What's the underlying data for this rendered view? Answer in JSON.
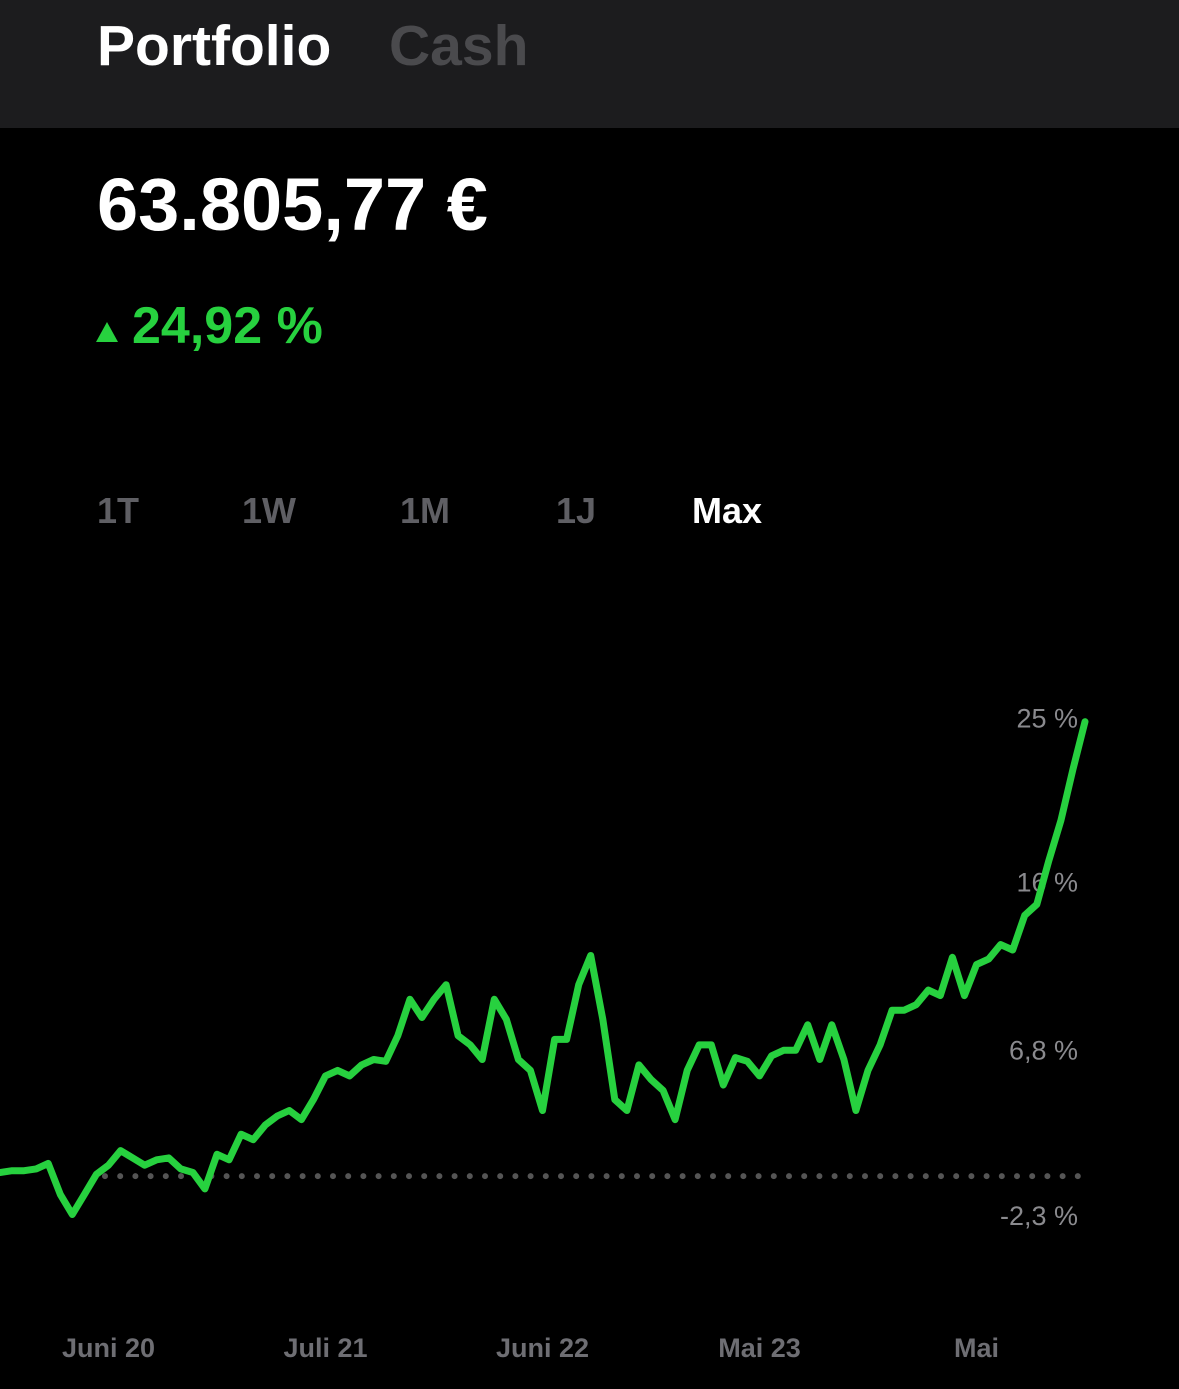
{
  "header": {
    "tabs": [
      "Portfolio",
      "Cash"
    ]
  },
  "portfolio": {
    "value": "63.805,77 €",
    "change": "24,92 %"
  },
  "range_buttons": [
    "1T",
    "1W",
    "1M",
    "1J",
    "Max"
  ],
  "chart_data": {
    "type": "line",
    "color": "#27d13f",
    "values": [
      0.2,
      0.3,
      0.3,
      0.4,
      0.7,
      -1.0,
      -2.1,
      -1.0,
      0.1,
      0.6,
      1.4,
      1.0,
      0.6,
      0.9,
      1.0,
      0.4,
      0.2,
      -0.7,
      1.2,
      0.9,
      2.3,
      2.0,
      2.8,
      3.3,
      3.6,
      3.1,
      4.2,
      5.5,
      5.8,
      5.5,
      6.1,
      6.4,
      6.3,
      7.7,
      9.7,
      8.7,
      9.7,
      10.5,
      7.7,
      7.2,
      6.4,
      9.7,
      8.6,
      6.4,
      5.8,
      3.6,
      7.5,
      7.5,
      10.5,
      12.1,
      8.6,
      4.2,
      3.6,
      6.1,
      5.3,
      4.7,
      3.1,
      5.8,
      7.2,
      7.2,
      5.0,
      6.5,
      6.3,
      5.5,
      6.6,
      6.9,
      6.9,
      8.3,
      6.4,
      8.3,
      6.4,
      3.6,
      5.8,
      7.2,
      9.1,
      9.1,
      9.4,
      10.2,
      9.9,
      12.0,
      9.9,
      11.6,
      11.9,
      12.7,
      12.4,
      14.3,
      14.9,
      17.3,
      19.5,
      22.3,
      24.92
    ],
    "xlim": [
      0,
      90
    ],
    "xticks": [
      {
        "value": 9,
        "label": "Juni 20"
      },
      {
        "value": 27,
        "label": "Juli 21"
      },
      {
        "value": 45,
        "label": "Juni 22"
      },
      {
        "value": 63,
        "label": "Mai 23"
      },
      {
        "value": 81,
        "label": "Mai"
      }
    ],
    "ylim": [
      -3.5,
      26
    ],
    "yticks": [
      {
        "value": 25,
        "label": "25 %"
      },
      {
        "value": 16,
        "label": "16 %"
      },
      {
        "value": 6.8,
        "label": "6,8 %"
      },
      {
        "value": -2.3,
        "label": "-2,3 %"
      }
    ]
  }
}
